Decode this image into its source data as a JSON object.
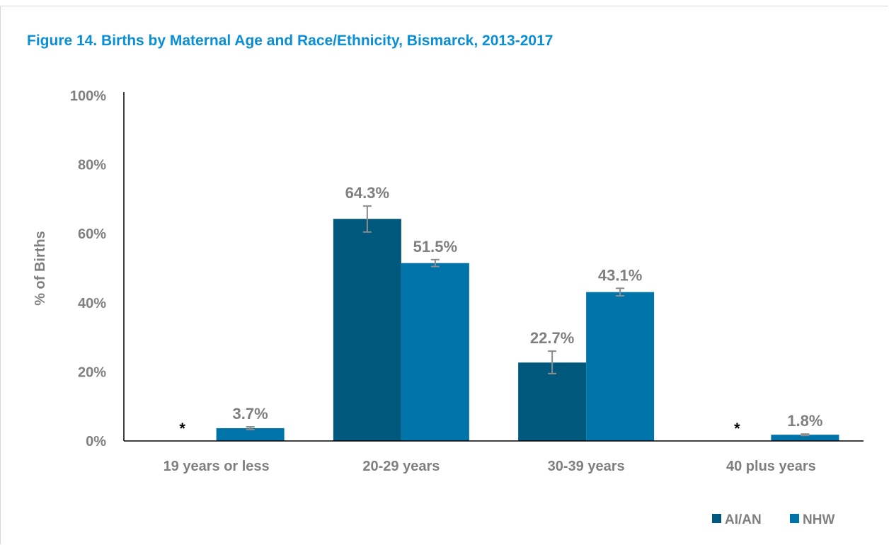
{
  "chart_data": {
    "type": "bar",
    "title": "Figure 14. Births by Maternal Age and Race/Ethnicity, Bismarck, 2013-2017",
    "xlabel": "",
    "ylabel": "% of Births",
    "ylim": [
      0,
      100
    ],
    "yticks": [
      "0%",
      "20%",
      "40%",
      "60%",
      "80%",
      "100%"
    ],
    "categories": [
      "19 years or less",
      "20-29 years",
      "30-39 years",
      "40 plus years"
    ],
    "series": [
      {
        "name": "AI/AN",
        "color": "#00587c",
        "values": [
          null,
          64.3,
          22.7,
          null
        ],
        "labels": [
          "*",
          "64.3%",
          "22.7%",
          "*"
        ],
        "error_low": [
          null,
          60.5,
          19.5,
          null
        ],
        "error_high": [
          null,
          68.0,
          26.0,
          null
        ]
      },
      {
        "name": "NHW",
        "color": "#0073a8",
        "values": [
          3.7,
          51.5,
          43.1,
          1.8
        ],
        "labels": [
          "3.7%",
          "51.5%",
          "43.1%",
          "1.8%"
        ],
        "error_low": [
          3.3,
          50.5,
          42.0,
          1.6
        ],
        "error_high": [
          4.1,
          52.5,
          44.2,
          2.0
        ]
      }
    ],
    "grid": false,
    "legend_position": "bottom-right",
    "colors": {
      "title": "#0a8fd6",
      "axis_line": "#000000",
      "text": "#808080",
      "error_bar": "#8c8c8c"
    }
  }
}
